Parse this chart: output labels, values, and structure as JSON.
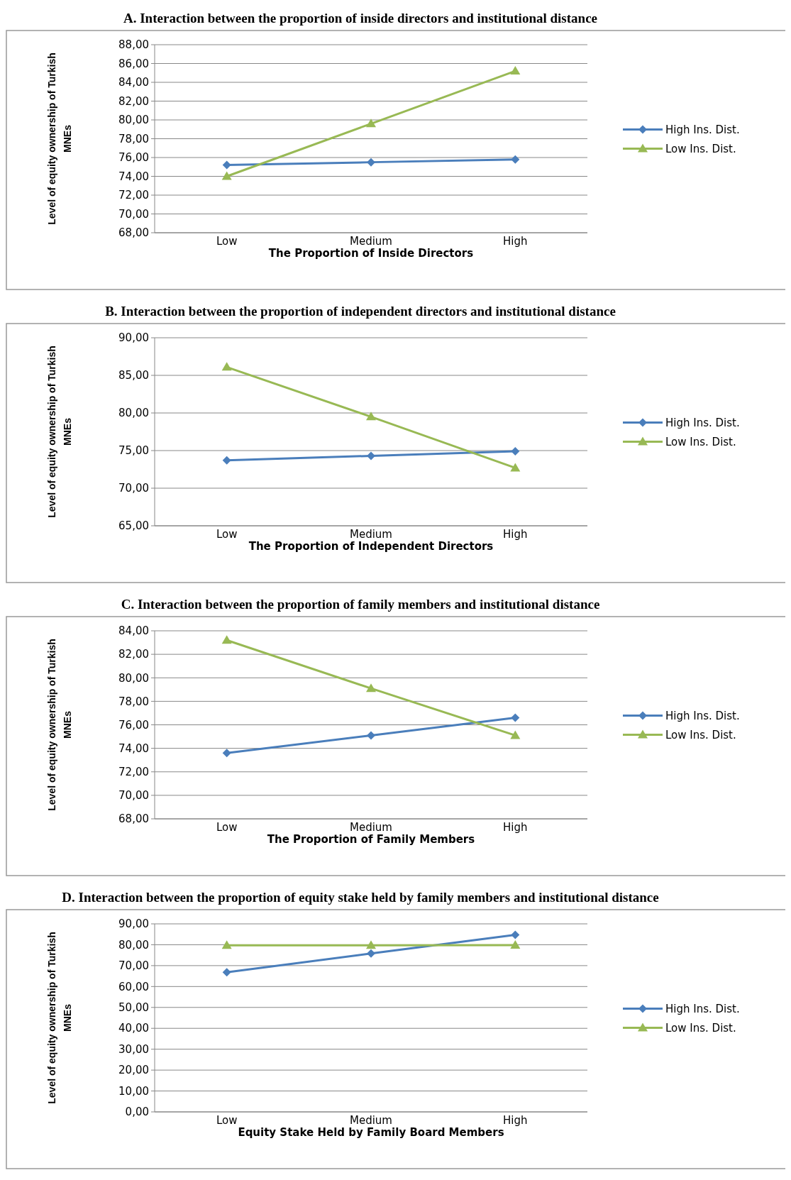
{
  "chart_data": [
    {
      "type": "line",
      "title": "A. Interaction between the proportion of inside directors and institutional distance",
      "xlabel": "The Proportion  of Inside Directors",
      "ylabel": "Level of equity ownership of Turkish MNEs",
      "categories": [
        "Low",
        "Medium",
        "High"
      ],
      "ylim": [
        68,
        88
      ],
      "yticks": [
        {
          "value": 68,
          "label": "68,00"
        },
        {
          "value": 70,
          "label": "70,00"
        },
        {
          "value": 72,
          "label": "72,00"
        },
        {
          "value": 74,
          "label": "74,00"
        },
        {
          "value": 76,
          "label": "76,00"
        },
        {
          "value": 78,
          "label": "78,00"
        },
        {
          "value": 80,
          "label": "80,00"
        },
        {
          "value": 82,
          "label": "82,00"
        },
        {
          "value": 84,
          "label": "84,00"
        },
        {
          "value": 86,
          "label": "86,00"
        },
        {
          "value": 88,
          "label": "88,00"
        }
      ],
      "grid": "y",
      "legend": "right",
      "series": [
        {
          "name": "High Ins. Dist.",
          "color": "#4a7ebb",
          "marker": "diamond",
          "values": [
            75.2,
            75.5,
            75.8
          ]
        },
        {
          "name": "Low Ins. Dist.",
          "color": "#98b954",
          "marker": "triangle",
          "values": [
            74.0,
            79.6,
            85.2
          ]
        }
      ]
    },
    {
      "type": "line",
      "title": "B. Interaction between the proportion of independent directors and institutional distance",
      "xlabel": "The Proportion  of Independent Directors",
      "ylabel": "Level of equity ownership of Turkish MNEs",
      "categories": [
        "Low",
        "Medium",
        "High"
      ],
      "ylim": [
        65,
        90
      ],
      "yticks": [
        {
          "value": 65,
          "label": "65,00"
        },
        {
          "value": 70,
          "label": "70,00"
        },
        {
          "value": 75,
          "label": "75,00"
        },
        {
          "value": 80,
          "label": "80,00"
        },
        {
          "value": 85,
          "label": "85,00"
        },
        {
          "value": 90,
          "label": "90,00"
        }
      ],
      "grid": "y",
      "legend": "right",
      "series": [
        {
          "name": "High Ins. Dist.",
          "color": "#4a7ebb",
          "marker": "diamond",
          "values": [
            73.7,
            74.3,
            74.9
          ]
        },
        {
          "name": "Low Ins. Dist.",
          "color": "#98b954",
          "marker": "triangle",
          "values": [
            86.1,
            79.5,
            72.7
          ]
        }
      ]
    },
    {
      "type": "line",
      "title": "C. Interaction between the proportion of family members and institutional distance",
      "xlabel": "The Proportion  of Family Members",
      "ylabel": "Level of equity ownership of Turkish MNEs",
      "categories": [
        "Low",
        "Medium",
        "High"
      ],
      "ylim": [
        68,
        84
      ],
      "yticks": [
        {
          "value": 68,
          "label": "68,00"
        },
        {
          "value": 70,
          "label": "70,00"
        },
        {
          "value": 72,
          "label": "72,00"
        },
        {
          "value": 74,
          "label": "74,00"
        },
        {
          "value": 76,
          "label": "76,00"
        },
        {
          "value": 78,
          "label": "78,00"
        },
        {
          "value": 80,
          "label": "80,00"
        },
        {
          "value": 82,
          "label": "82,00"
        },
        {
          "value": 84,
          "label": "84,00"
        }
      ],
      "grid": "y",
      "legend": "right",
      "series": [
        {
          "name": "High Ins. Dist.",
          "color": "#4a7ebb",
          "marker": "diamond",
          "values": [
            73.6,
            75.1,
            76.6
          ]
        },
        {
          "name": "Low Ins. Dist.",
          "color": "#98b954",
          "marker": "triangle",
          "values": [
            83.2,
            79.1,
            75.1
          ]
        }
      ]
    },
    {
      "type": "line",
      "title": "D. Interaction between the proportion of equity stake held by family members and institutional distance",
      "xlabel": "Equity Stake Held by Family Board Members",
      "ylabel": "Level of equity ownership of Turkish MNEs",
      "categories": [
        "Low",
        "Medium",
        "High"
      ],
      "ylim": [
        0,
        90
      ],
      "yticks": [
        {
          "value": 0,
          "label": "0,00"
        },
        {
          "value": 10,
          "label": "10,00"
        },
        {
          "value": 20,
          "label": "20,00"
        },
        {
          "value": 30,
          "label": "30,00"
        },
        {
          "value": 40,
          "label": "40,00"
        },
        {
          "value": 50,
          "label": "50,00"
        },
        {
          "value": 60,
          "label": "60,00"
        },
        {
          "value": 70,
          "label": "70,00"
        },
        {
          "value": 80,
          "label": "80,00"
        },
        {
          "value": 90,
          "label": "90,00"
        }
      ],
      "grid": "y",
      "legend": "right",
      "series": [
        {
          "name": "High Ins. Dist.",
          "color": "#4a7ebb",
          "marker": "diamond",
          "values": [
            66.8,
            75.8,
            84.7
          ]
        },
        {
          "name": "Low Ins. Dist.",
          "color": "#98b954",
          "marker": "triangle",
          "values": [
            79.7,
            79.7,
            79.8
          ]
        }
      ]
    }
  ]
}
